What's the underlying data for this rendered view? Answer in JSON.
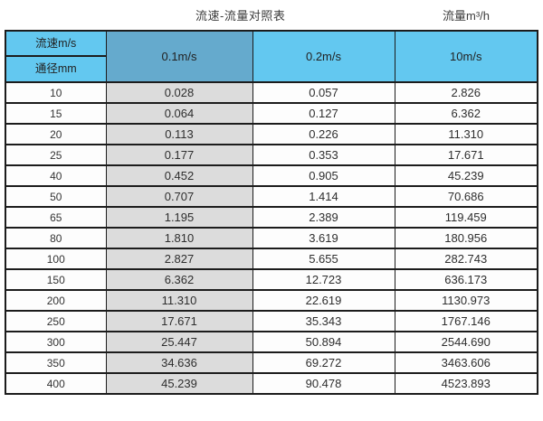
{
  "titles": {
    "main": "流速-流量对照表",
    "right": "流量m³/h"
  },
  "table": {
    "corner_top": "流速m/s",
    "corner_bottom": "通径mm",
    "velocity_columns": [
      "0.1m/s",
      "0.2m/s",
      "10m/s"
    ],
    "rows": [
      {
        "dn": "10",
        "values": [
          "0.028",
          "0.057",
          "2.826"
        ]
      },
      {
        "dn": "15",
        "values": [
          "0.064",
          "0.127",
          "6.362"
        ]
      },
      {
        "dn": "20",
        "values": [
          "0.113",
          "0.226",
          "11.310"
        ]
      },
      {
        "dn": "25",
        "values": [
          "0.177",
          "0.353",
          "17.671"
        ]
      },
      {
        "dn": "40",
        "values": [
          "0.452",
          "0.905",
          "45.239"
        ]
      },
      {
        "dn": "50",
        "values": [
          "0.707",
          "1.414",
          "70.686"
        ]
      },
      {
        "dn": "65",
        "values": [
          "1.195",
          "2.389",
          "119.459"
        ]
      },
      {
        "dn": "80",
        "values": [
          "1.810",
          "3.619",
          "180.956"
        ]
      },
      {
        "dn": "100",
        "values": [
          "2.827",
          "5.655",
          "282.743"
        ]
      },
      {
        "dn": "150",
        "values": [
          "6.362",
          "12.723",
          "636.173"
        ]
      },
      {
        "dn": "200",
        "values": [
          "11.310",
          "22.619",
          "1130.973"
        ]
      },
      {
        "dn": "250",
        "values": [
          "17.671",
          "35.343",
          "1767.146"
        ]
      },
      {
        "dn": "300",
        "values": [
          "25.447",
          "50.894",
          "2544.690"
        ]
      },
      {
        "dn": "350",
        "values": [
          "34.636",
          "69.272",
          "3463.606"
        ]
      },
      {
        "dn": "400",
        "values": [
          "45.239",
          "90.478",
          "4523.893"
        ]
      }
    ]
  },
  "colors": {
    "header_sky_blue": "#63c8f0",
    "header_steel_blue": "#65aacd",
    "shaded_column_grey": "#dcdcdc",
    "border_black": "#1c1c1c",
    "cell_white": "#fdfdfd"
  },
  "chart_data": {
    "type": "table",
    "title": "流速-流量对照表",
    "unit_label": "流量m³/h",
    "column_axis_label": "流速m/s",
    "row_axis_label": "通径mm",
    "columns": [
      "0.1m/s",
      "0.2m/s",
      "10m/s"
    ],
    "row_headers": [
      10,
      15,
      20,
      25,
      40,
      50,
      65,
      80,
      100,
      150,
      200,
      250,
      300,
      350,
      400
    ],
    "values": [
      [
        0.028,
        0.057,
        2.826
      ],
      [
        0.064,
        0.127,
        6.362
      ],
      [
        0.113,
        0.226,
        11.31
      ],
      [
        0.177,
        0.353,
        17.671
      ],
      [
        0.452,
        0.905,
        45.239
      ],
      [
        0.707,
        1.414,
        70.686
      ],
      [
        1.195,
        2.389,
        119.459
      ],
      [
        1.81,
        3.619,
        180.956
      ],
      [
        2.827,
        5.655,
        282.743
      ],
      [
        6.362,
        12.723,
        636.173
      ],
      [
        11.31,
        22.619,
        1130.973
      ],
      [
        17.671,
        35.343,
        1767.146
      ],
      [
        25.447,
        50.894,
        2544.69
      ],
      [
        34.636,
        69.272,
        3463.606
      ],
      [
        45.239,
        90.478,
        4523.893
      ]
    ]
  }
}
